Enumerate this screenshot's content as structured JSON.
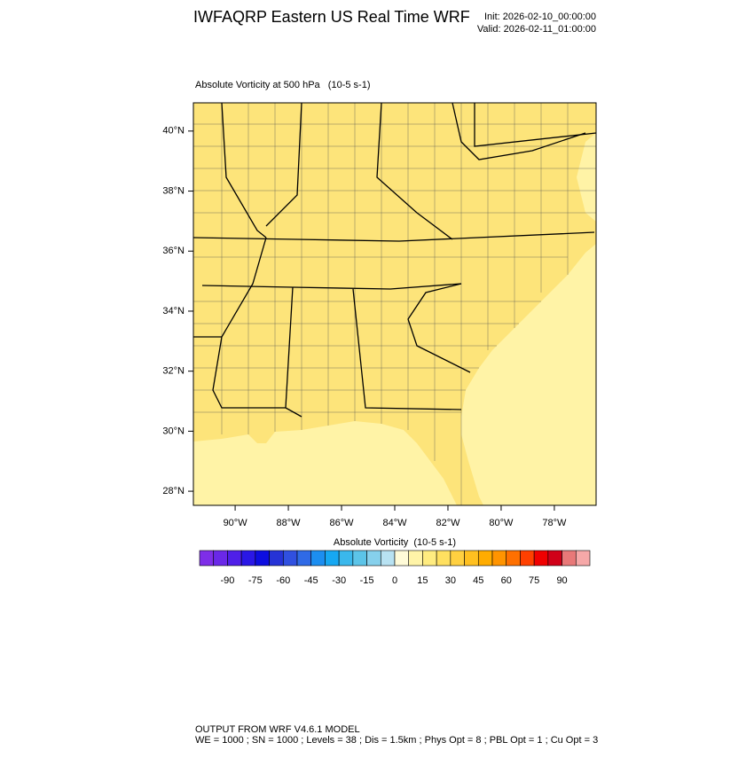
{
  "header": {
    "title": "IWFAQRP Eastern US Real Time WRF",
    "init": "Init: 2026-02-10_00:00:00",
    "valid": "Valid: 2026-02-11_01:00:00"
  },
  "map": {
    "subtitle": "Absolute Vorticity at 500 hPa   (10-5 s-1)",
    "lat_range": [
      27.53,
      40.94
    ],
    "lon_range": [
      -91.57,
      -76.43
    ],
    "lat_ticks": [
      {
        "value": 40,
        "label": "40°N"
      },
      {
        "value": 38,
        "label": "38°N"
      },
      {
        "value": 36,
        "label": "36°N"
      },
      {
        "value": 34,
        "label": "34°N"
      },
      {
        "value": 32,
        "label": "32°N"
      },
      {
        "value": 30,
        "label": "30°N"
      },
      {
        "value": 28,
        "label": "28°N"
      }
    ],
    "lon_ticks": [
      {
        "value": -90,
        "label": "90°W"
      },
      {
        "value": -88,
        "label": "88°W"
      },
      {
        "value": -86,
        "label": "86°W"
      },
      {
        "value": -84,
        "label": "84°W"
      },
      {
        "value": -82,
        "label": "82°W"
      },
      {
        "value": -80,
        "label": "80°W"
      },
      {
        "value": -78,
        "label": "78°W"
      }
    ]
  },
  "colorbar": {
    "title": "Absolute Vorticity  (10-5 s-1)",
    "range": [
      -105,
      105
    ],
    "colors": [
      "#7e2ee8",
      "#6a28e8",
      "#4f1fe8",
      "#2a17e6",
      "#0d0de0",
      "#2633d6",
      "#3050e0",
      "#2f6ae6",
      "#1c8ef0",
      "#16a8f2",
      "#3ab8ec",
      "#5cc4e8",
      "#86d0ec",
      "#b8e2f2",
      "#fffbd8",
      "#fff4a8",
      "#ffec80",
      "#ffe060",
      "#ffd040",
      "#ffc020",
      "#ffac00",
      "#ff9400",
      "#ff7000",
      "#ff4000",
      "#f00000",
      "#d00018",
      "#e87878",
      "#f6a8a8"
    ],
    "ticks": [
      -90,
      -75,
      -60,
      -45,
      -30,
      -15,
      0,
      15,
      30,
      45,
      60,
      75,
      90
    ]
  },
  "footer": {
    "line1": "OUTPUT FROM WRF V4.6.1 MODEL",
    "line2": "WE = 1000 ; SN = 1000 ; Levels = 38 ; Dis = 1.5km ; Phys Opt = 8 ; PBL Opt = 1 ; Cu Opt = 3"
  }
}
